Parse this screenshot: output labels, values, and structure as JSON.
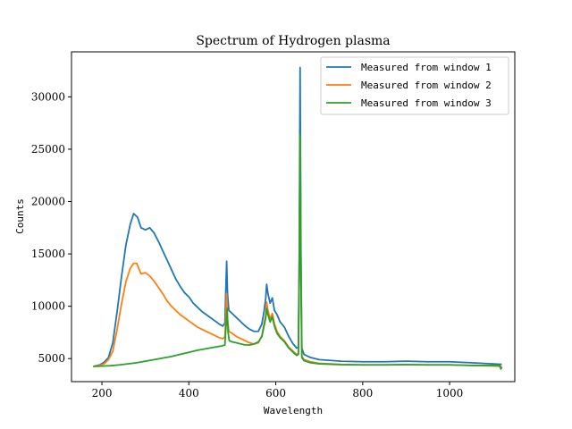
{
  "chart_data": {
    "type": "line",
    "title": "Spectrum of Hydrogen plasma",
    "xlabel": "Wavelength",
    "ylabel": "Counts",
    "xlim": [
      130,
      1150
    ],
    "ylim": [
      2800,
      34300
    ],
    "xticks": [
      200,
      400,
      600,
      800,
      1000
    ],
    "yticks": [
      5000,
      10000,
      15000,
      20000,
      25000,
      30000
    ],
    "legend_position": "top-right",
    "grid": false,
    "series": [
      {
        "name": "Measured from window 1",
        "color": "#1f77b4",
        "points": [
          [
            180,
            4250
          ],
          [
            195,
            4400
          ],
          [
            205,
            4650
          ],
          [
            215,
            5100
          ],
          [
            225,
            6500
          ],
          [
            235,
            9500
          ],
          [
            245,
            12800
          ],
          [
            255,
            15800
          ],
          [
            265,
            17800
          ],
          [
            273,
            18850
          ],
          [
            282,
            18500
          ],
          [
            290,
            17500
          ],
          [
            300,
            17300
          ],
          [
            310,
            17500
          ],
          [
            320,
            17000
          ],
          [
            330,
            16200
          ],
          [
            340,
            15300
          ],
          [
            350,
            14400
          ],
          [
            360,
            13500
          ],
          [
            370,
            12600
          ],
          [
            380,
            11900
          ],
          [
            390,
            11300
          ],
          [
            400,
            10900
          ],
          [
            410,
            10300
          ],
          [
            420,
            9900
          ],
          [
            430,
            9500
          ],
          [
            440,
            9200
          ],
          [
            450,
            8900
          ],
          [
            460,
            8600
          ],
          [
            470,
            8300
          ],
          [
            478,
            8100
          ],
          [
            483,
            8400
          ],
          [
            485,
            11500
          ],
          [
            487,
            14300
          ],
          [
            489,
            11200
          ],
          [
            492,
            9600
          ],
          [
            500,
            9300
          ],
          [
            510,
            8900
          ],
          [
            520,
            8500
          ],
          [
            530,
            8100
          ],
          [
            540,
            7800
          ],
          [
            550,
            7600
          ],
          [
            560,
            7600
          ],
          [
            568,
            8300
          ],
          [
            573,
            9500
          ],
          [
            577,
            10800
          ],
          [
            579,
            12100
          ],
          [
            582,
            11200
          ],
          [
            587,
            10300
          ],
          [
            592,
            10800
          ],
          [
            597,
            9600
          ],
          [
            603,
            9200
          ],
          [
            610,
            8500
          ],
          [
            620,
            8000
          ],
          [
            630,
            7100
          ],
          [
            640,
            6400
          ],
          [
            648,
            6000
          ],
          [
            652,
            6100
          ],
          [
            654,
            15000
          ],
          [
            656,
            32800
          ],
          [
            658,
            15000
          ],
          [
            660,
            6000
          ],
          [
            665,
            5400
          ],
          [
            680,
            5100
          ],
          [
            700,
            4900
          ],
          [
            750,
            4750
          ],
          [
            800,
            4700
          ],
          [
            850,
            4700
          ],
          [
            900,
            4750
          ],
          [
            950,
            4700
          ],
          [
            1000,
            4700
          ],
          [
            1050,
            4600
          ],
          [
            1100,
            4500
          ],
          [
            1120,
            4450
          ]
        ]
      },
      {
        "name": "Measured from window 2",
        "color": "#ff7f0e",
        "points": [
          [
            180,
            4250
          ],
          [
            195,
            4350
          ],
          [
            205,
            4500
          ],
          [
            215,
            4900
          ],
          [
            225,
            5700
          ],
          [
            235,
            7800
          ],
          [
            245,
            10200
          ],
          [
            255,
            12300
          ],
          [
            265,
            13600
          ],
          [
            273,
            14100
          ],
          [
            280,
            14100
          ],
          [
            285,
            13600
          ],
          [
            290,
            13100
          ],
          [
            300,
            13200
          ],
          [
            310,
            12900
          ],
          [
            320,
            12400
          ],
          [
            330,
            11800
          ],
          [
            340,
            11200
          ],
          [
            350,
            10500
          ],
          [
            360,
            10000
          ],
          [
            370,
            9600
          ],
          [
            380,
            9200
          ],
          [
            390,
            8900
          ],
          [
            400,
            8600
          ],
          [
            410,
            8300
          ],
          [
            420,
            8000
          ],
          [
            430,
            7800
          ],
          [
            440,
            7600
          ],
          [
            450,
            7400
          ],
          [
            460,
            7200
          ],
          [
            470,
            7000
          ],
          [
            478,
            6900
          ],
          [
            483,
            7100
          ],
          [
            485,
            9000
          ],
          [
            487,
            11200
          ],
          [
            489,
            8800
          ],
          [
            492,
            7600
          ],
          [
            500,
            7400
          ],
          [
            510,
            7100
          ],
          [
            520,
            6900
          ],
          [
            530,
            6700
          ],
          [
            540,
            6500
          ],
          [
            550,
            6400
          ],
          [
            560,
            6500
          ],
          [
            568,
            7200
          ],
          [
            573,
            8300
          ],
          [
            577,
            9200
          ],
          [
            579,
            10400
          ],
          [
            582,
            9600
          ],
          [
            587,
            8800
          ],
          [
            592,
            9300
          ],
          [
            597,
            8300
          ],
          [
            603,
            7600
          ],
          [
            610,
            7100
          ],
          [
            620,
            6700
          ],
          [
            630,
            6100
          ],
          [
            640,
            5700
          ],
          [
            648,
            5400
          ],
          [
            652,
            5500
          ],
          [
            654,
            13000
          ],
          [
            656,
            26000
          ],
          [
            658,
            13000
          ],
          [
            660,
            5200
          ],
          [
            665,
            4900
          ],
          [
            680,
            4700
          ],
          [
            700,
            4550
          ],
          [
            750,
            4450
          ],
          [
            800,
            4400
          ],
          [
            850,
            4400
          ],
          [
            900,
            4420
          ],
          [
            950,
            4400
          ],
          [
            1000,
            4400
          ],
          [
            1050,
            4350
          ],
          [
            1100,
            4300
          ],
          [
            1120,
            4250
          ]
        ]
      },
      {
        "name": "Measured from window 3",
        "color": "#2ca02c",
        "points": [
          [
            180,
            4250
          ],
          [
            200,
            4280
          ],
          [
            220,
            4320
          ],
          [
            240,
            4400
          ],
          [
            260,
            4500
          ],
          [
            280,
            4600
          ],
          [
            300,
            4750
          ],
          [
            320,
            4900
          ],
          [
            340,
            5050
          ],
          [
            360,
            5200
          ],
          [
            380,
            5400
          ],
          [
            400,
            5600
          ],
          [
            420,
            5800
          ],
          [
            440,
            5950
          ],
          [
            460,
            6100
          ],
          [
            475,
            6200
          ],
          [
            483,
            6300
          ],
          [
            486,
            8500
          ],
          [
            488,
            9800
          ],
          [
            490,
            7600
          ],
          [
            493,
            6700
          ],
          [
            500,
            6600
          ],
          [
            510,
            6500
          ],
          [
            520,
            6400
          ],
          [
            530,
            6300
          ],
          [
            540,
            6300
          ],
          [
            550,
            6400
          ],
          [
            560,
            6600
          ],
          [
            568,
            7100
          ],
          [
            573,
            8100
          ],
          [
            577,
            8900
          ],
          [
            579,
            9800
          ],
          [
            582,
            9200
          ],
          [
            587,
            8500
          ],
          [
            592,
            9000
          ],
          [
            597,
            8100
          ],
          [
            603,
            7400
          ],
          [
            610,
            7000
          ],
          [
            620,
            6600
          ],
          [
            630,
            6000
          ],
          [
            640,
            5600
          ],
          [
            648,
            5300
          ],
          [
            652,
            5400
          ],
          [
            654,
            13000
          ],
          [
            656,
            26400
          ],
          [
            658,
            13000
          ],
          [
            660,
            5100
          ],
          [
            665,
            4800
          ],
          [
            680,
            4600
          ],
          [
            700,
            4500
          ],
          [
            750,
            4420
          ],
          [
            800,
            4400
          ],
          [
            850,
            4400
          ],
          [
            900,
            4420
          ],
          [
            950,
            4400
          ],
          [
            1000,
            4400
          ],
          [
            1050,
            4350
          ],
          [
            1100,
            4350
          ],
          [
            1115,
            4350
          ],
          [
            1118,
            4000
          ],
          [
            1120,
            4200
          ]
        ]
      }
    ]
  }
}
